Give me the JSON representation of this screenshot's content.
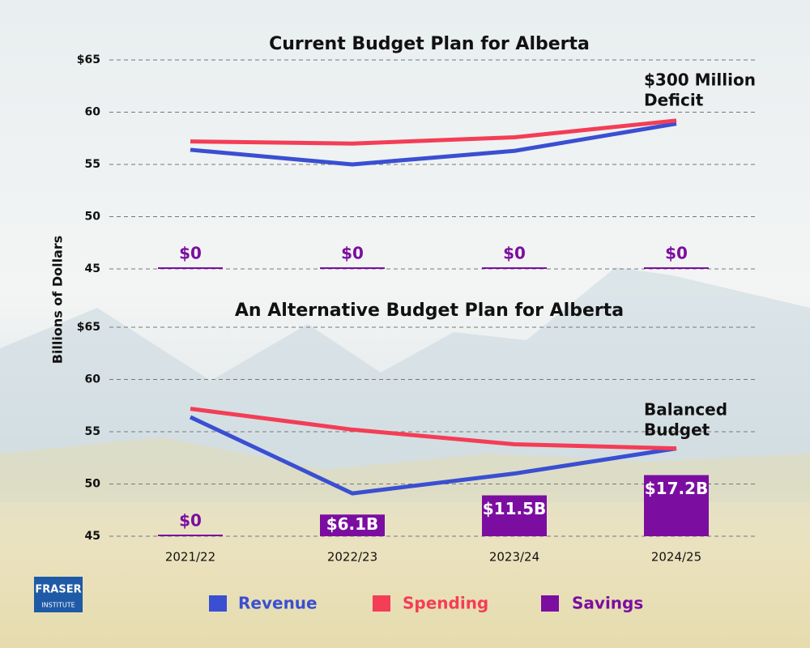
{
  "chart_data": [
    {
      "type": "line",
      "title": "Current Budget Plan for Alberta",
      "annotation": [
        "$300 Million",
        "Deficit"
      ],
      "ylim": [
        45,
        65
      ],
      "yticks": [
        {
          "value": 65,
          "label": "$65"
        },
        60,
        55,
        50,
        45
      ],
      "y2lim": [
        0,
        58.8
      ],
      "grid": true,
      "series": [
        {
          "color": "#3a4fd1",
          "values": [
            56.4,
            55.0,
            56.3,
            58.9
          ]
        },
        {
          "color": "#f43d56",
          "values": [
            57.2,
            57.0,
            57.6,
            59.2
          ]
        },
        {
          "type": "bar",
          "axis": "y2",
          "color": "#7b0ea0",
          "values": [
            0,
            0,
            0,
            0
          ],
          "value_labels": [
            "$0",
            "$0",
            "$0",
            "$0"
          ]
        }
      ]
    },
    {
      "type": "line",
      "title": "An Alternative Budget Plan for Alberta",
      "y_label": "Billions of Dollars",
      "annotation": [
        "Balanced",
        "Budget"
      ],
      "categories": [
        "2021/22",
        "2022/23",
        "2023/24",
        "2024/25"
      ],
      "ylim": [
        45,
        65
      ],
      "yticks": [
        {
          "value": 65,
          "label": "$65"
        },
        60,
        55,
        50,
        45
      ],
      "y2lim": [
        0,
        58.8
      ],
      "grid": true,
      "series": [
        {
          "name": "Revenue",
          "color": "#3a4fd1",
          "values": [
            56.4,
            49.1,
            51.0,
            53.4
          ]
        },
        {
          "name": "Spending",
          "color": "#f43d56",
          "values": [
            57.2,
            55.2,
            53.8,
            53.4
          ]
        },
        {
          "name": "Savings",
          "type": "bar",
          "axis": "y2",
          "color": "#7b0ea0",
          "values": [
            0,
            6.1,
            11.5,
            17.2
          ],
          "value_labels": [
            "$0",
            "$6.1B",
            "$11.5B",
            "$17.2B"
          ]
        }
      ]
    }
  ],
  "logo": [
    "FRASER",
    "INSTITUTE"
  ]
}
